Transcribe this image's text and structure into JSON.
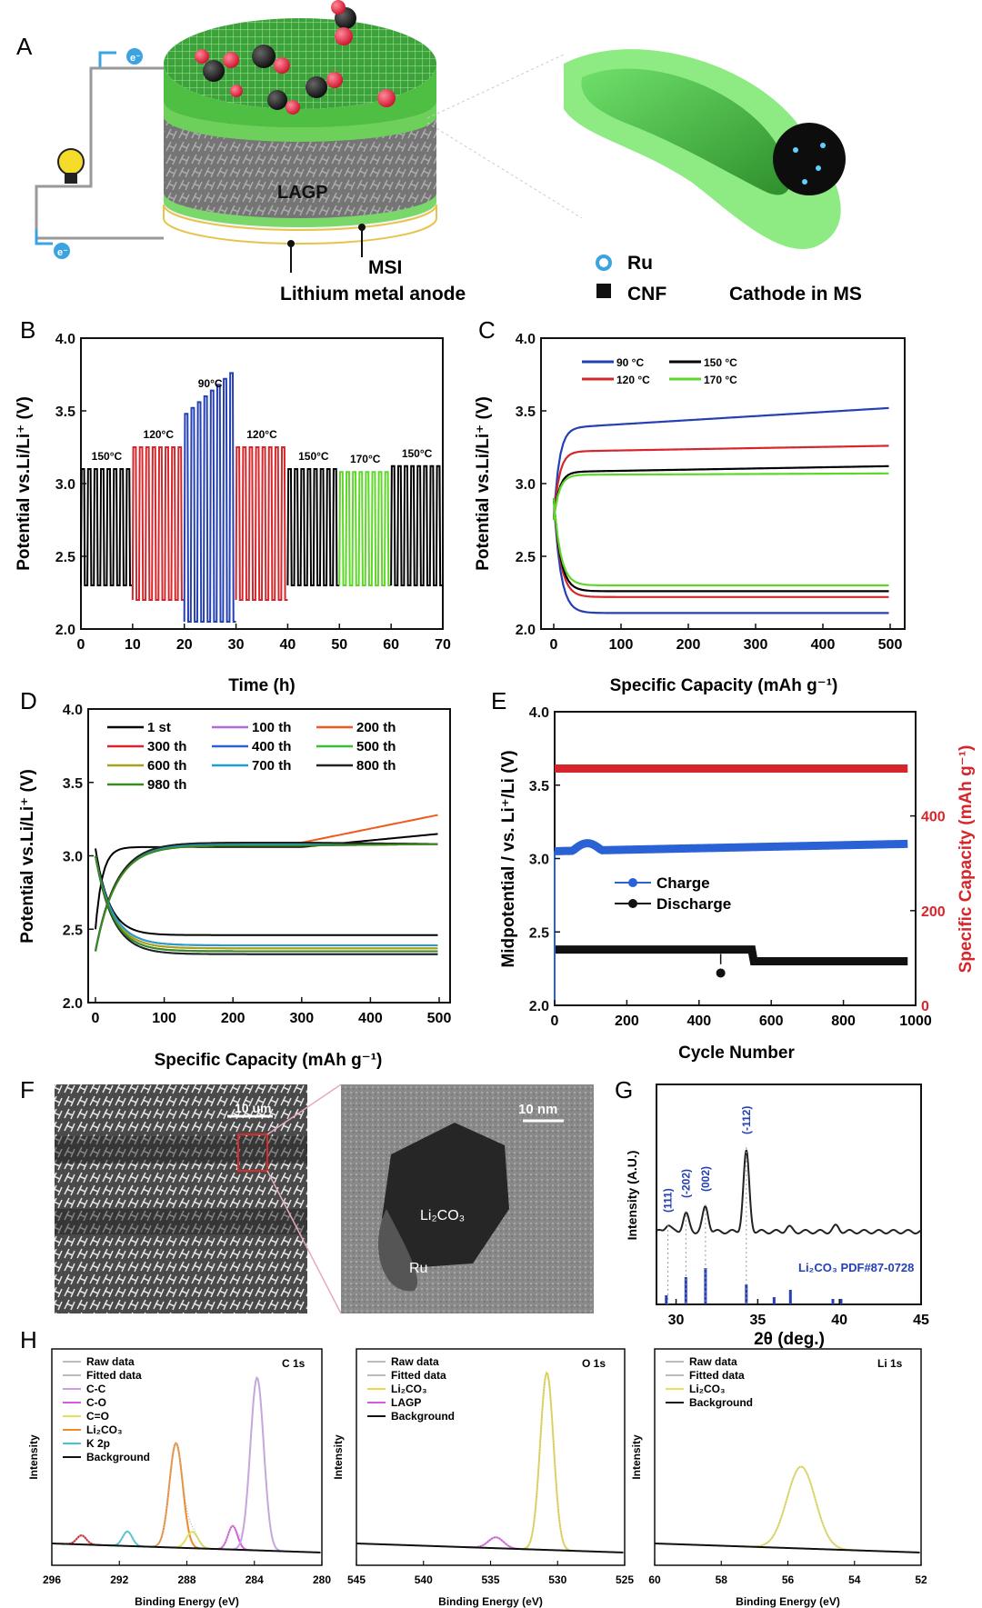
{
  "panels": {
    "A": {
      "letter": "A",
      "labels": {
        "lagp": "LAGP",
        "msi": "MSI",
        "anode": "Lithium metal anode",
        "ru": "Ru",
        "cnf": "CNF",
        "cathode": "Cathode in MS",
        "electron": "e⁻"
      }
    },
    "B": {
      "letter": "B",
      "ylabel": "Potential vs.Li/Li⁺ (V)",
      "xlabel": "Time (h)",
      "xticks": [
        "0",
        "10",
        "20",
        "30",
        "40",
        "50",
        "60",
        "70"
      ],
      "yticks": [
        "2.0",
        "2.5",
        "3.0",
        "3.5",
        "4.0"
      ],
      "segments": [
        {
          "label": "150°C",
          "t0": 0,
          "t1": 10,
          "high": 3.1,
          "low": 2.3,
          "color": "#000000"
        },
        {
          "label": "120°C",
          "t0": 10,
          "t1": 20,
          "high": 3.25,
          "low": 2.2,
          "color": "#d6262b"
        },
        {
          "label": "90°C",
          "t0": 20,
          "t1": 30,
          "high": 3.6,
          "low": 2.05,
          "color": "#2540b5"
        },
        {
          "label": "120°C",
          "t0": 30,
          "t1": 40,
          "high": 3.25,
          "low": 2.2,
          "color": "#d6262b"
        },
        {
          "label": "150°C",
          "t0": 40,
          "t1": 50,
          "high": 3.1,
          "low": 2.3,
          "color": "#000000"
        },
        {
          "label": "170°C",
          "t0": 50,
          "t1": 60,
          "high": 3.08,
          "low": 2.3,
          "color": "#5ed62a"
        },
        {
          "label": "150°C",
          "t0": 60,
          "t1": 70,
          "high": 3.12,
          "low": 2.3,
          "color": "#000000"
        }
      ]
    },
    "C": {
      "letter": "C",
      "ylabel": "Potential vs.Li/Li⁺ (V)",
      "xlabel": "Specific Capacity (mAh g⁻¹)",
      "xticks": [
        "0",
        "100",
        "200",
        "300",
        "400",
        "500"
      ],
      "yticks": [
        "2.0",
        "2.5",
        "3.0",
        "3.5",
        "4.0"
      ],
      "legend": [
        "90 °C",
        "150 °C",
        "120 °C",
        "170 °C"
      ],
      "series": [
        {
          "name": "90 °C",
          "color": "#2540b5",
          "charge_end": 3.52,
          "charge_plateau": 3.38,
          "discharge": 2.11
        },
        {
          "name": "120 °C",
          "color": "#d6262b",
          "charge_end": 3.26,
          "charge_plateau": 3.22,
          "discharge": 2.22
        },
        {
          "name": "150 °C",
          "color": "#000000",
          "charge_end": 3.12,
          "charge_plateau": 3.08,
          "discharge": 2.26
        },
        {
          "name": "170 °C",
          "color": "#5ed62a",
          "charge_end": 3.07,
          "charge_plateau": 3.06,
          "discharge": 2.3
        }
      ]
    },
    "D": {
      "letter": "D",
      "ylabel": "Potential vs.Li/Li⁺ (V)",
      "xlabel": "Specific Capacity (mAh g⁻¹)",
      "xticks": [
        "0",
        "100",
        "200",
        "300",
        "400",
        "500"
      ],
      "yticks": [
        "2.0",
        "2.5",
        "3.0",
        "3.5",
        "4.0"
      ],
      "legend": [
        {
          "name": "1 st",
          "color": "#000000"
        },
        {
          "name": "100 th",
          "color": "#b06be0"
        },
        {
          "name": "200 th",
          "color": "#ef5a1c"
        },
        {
          "name": "300 th",
          "color": "#d6262b"
        },
        {
          "name": "400 th",
          "color": "#2a62d6"
        },
        {
          "name": "500 th",
          "color": "#3bbf3b"
        },
        {
          "name": "600 th",
          "color": "#a6a21c"
        },
        {
          "name": "700 th",
          "color": "#1c9fd6"
        },
        {
          "name": "800 th",
          "color": "#222222"
        },
        {
          "name": "980 th",
          "color": "#3a8a22"
        }
      ]
    },
    "E": {
      "letter": "E",
      "ylabel": "Midpotential / vs. Li⁺/Li (V)",
      "y2label": "Specific Capacity (mAh g⁻¹)",
      "xlabel": "Cycle Number",
      "xticks": [
        "0",
        "200",
        "400",
        "600",
        "800",
        "1000"
      ],
      "yticks": [
        "2.0",
        "2.5",
        "3.0",
        "3.5",
        "4.0"
      ],
      "y2ticks": [
        "0",
        "200",
        "400"
      ],
      "legend": [
        "Charge",
        "Discharge"
      ],
      "capacity": 500,
      "charge_mid": 3.05,
      "discharge_mid": 2.35
    },
    "F": {
      "letter": "F",
      "scale_left": "10 um",
      "scale_right": "10 nm",
      "label_li2co3": "Li₂CO₃",
      "label_ru": "Ru"
    },
    "G": {
      "letter": "G",
      "ylabel": "Intensity (A.U.)",
      "xlabel": "2θ (deg.)",
      "xticks": [
        "30",
        "35",
        "40",
        "45"
      ],
      "peaks": [
        "(111)",
        "(-202)",
        "(002)",
        "(-112)"
      ],
      "reference": "Li₂CO₃ PDF#87-0728"
    },
    "H": {
      "letter": "H",
      "ylabel": "Intensity",
      "xlabel": "Binding Energy (eV)",
      "c1s": {
        "title": "C 1s",
        "legend": [
          "Raw data",
          "Fitted data",
          "C-C",
          "C-O",
          "C=O",
          "Li₂CO₃",
          "K 2p",
          "Background"
        ],
        "xticks": [
          "296",
          "292",
          "288",
          "284",
          "280"
        ]
      },
      "o1s": {
        "title": "O 1s",
        "legend": [
          "Raw data",
          "Fitted data",
          "Li₂CO₃",
          "LAGP",
          "Background"
        ],
        "xticks": [
          "545",
          "540",
          "535",
          "530",
          "525"
        ]
      },
      "li1s": {
        "title": "Li 1s",
        "legend": [
          "Raw data",
          "Fitted data",
          "Li₂CO₃",
          "Background"
        ],
        "xticks": [
          "60",
          "58",
          "56",
          "54",
          "52"
        ]
      }
    }
  }
}
